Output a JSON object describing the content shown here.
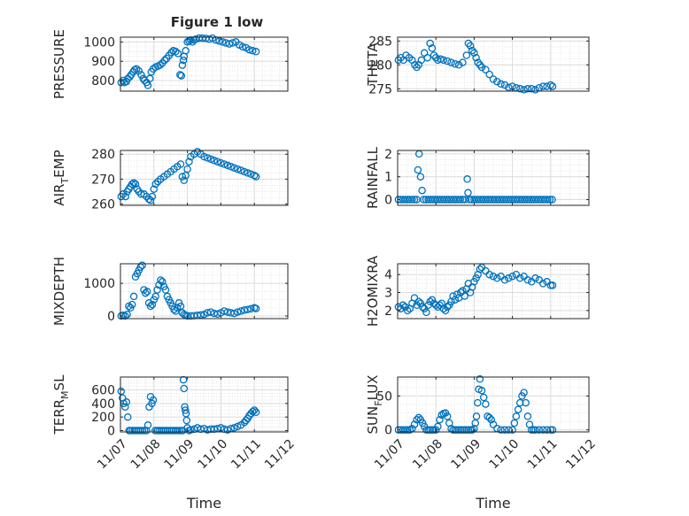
{
  "figure": {
    "title": "Figure 1 low"
  },
  "chart_data": [
    {
      "type": "scatter",
      "panel": "PRESSURE",
      "ylabel": "PRESSURE",
      "xlabel": "",
      "title": "Figure 1 low",
      "ylim": [
        745,
        1025
      ],
      "yticks": [
        800,
        900,
        1000
      ],
      "ytick_labels": [
        "800",
        "900",
        "1000"
      ],
      "xlim": [
        0,
        5
      ],
      "xticks": [
        0,
        1,
        2,
        3,
        4,
        5
      ],
      "xtick_labels": [],
      "grid": true,
      "marker": "o",
      "color": "#0072BD",
      "x": [
        0.02,
        0.08,
        0.12,
        0.18,
        0.22,
        0.28,
        0.32,
        0.38,
        0.42,
        0.48,
        0.55,
        0.62,
        0.68,
        0.72,
        0.78,
        0.82,
        0.88,
        0.92,
        0.98,
        1.05,
        1.12,
        1.18,
        1.25,
        1.32,
        1.38,
        1.45,
        1.52,
        1.58,
        1.65,
        1.72,
        1.78,
        1.82,
        1.85,
        1.88,
        1.9,
        1.95,
        2.0,
        2.05,
        2.1,
        2.15,
        2.2,
        2.25,
        2.35,
        2.45,
        2.55,
        2.65,
        2.75,
        2.85,
        2.95,
        3.05,
        3.15,
        3.25,
        3.35,
        3.45,
        3.55,
        3.65,
        3.75,
        3.85,
        3.95,
        4.05
      ],
      "y": [
        790,
        800,
        790,
        795,
        810,
        820,
        830,
        845,
        855,
        860,
        850,
        830,
        810,
        800,
        790,
        775,
        810,
        845,
        860,
        870,
        875,
        880,
        890,
        905,
        915,
        930,
        945,
        955,
        950,
        940,
        830,
        825,
        880,
        905,
        925,
        955,
        1000,
        1005,
        1010,
        1000,
        1010,
        1015,
        1020,
        1020,
        1018,
        1015,
        1020,
        1010,
        1005,
        1000,
        995,
        990,
        995,
        1000,
        985,
        975,
        970,
        960,
        955,
        950
      ]
    },
    {
      "type": "scatter",
      "panel": "THETA",
      "ylabel": "THETA",
      "xlabel": "",
      "ylim": [
        274.5,
        285.8
      ],
      "yticks": [
        275,
        280,
        285
      ],
      "ytick_labels": [
        "275",
        "280",
        "285"
      ],
      "xlim": [
        0,
        5
      ],
      "xticks": [
        0,
        1,
        2,
        3,
        4,
        5
      ],
      "xtick_labels": [],
      "grid": true,
      "marker": "o",
      "color": "#0072BD",
      "x": [
        0.02,
        0.08,
        0.15,
        0.22,
        0.3,
        0.38,
        0.45,
        0.5,
        0.55,
        0.62,
        0.7,
        0.78,
        0.85,
        0.9,
        0.95,
        1.0,
        1.05,
        1.12,
        1.2,
        1.3,
        1.4,
        1.5,
        1.6,
        1.7,
        1.8,
        1.85,
        1.9,
        1.95,
        2.0,
        2.05,
        2.1,
        2.15,
        2.2,
        2.3,
        2.4,
        2.5,
        2.6,
        2.7,
        2.8,
        2.9,
        3.0,
        3.1,
        3.2,
        3.3,
        3.4,
        3.5,
        3.6,
        3.7,
        3.8,
        3.9,
        4.0,
        4.05
      ],
      "y": [
        281,
        281.5,
        281,
        282,
        281.5,
        281,
        280,
        279.5,
        280,
        281,
        282.5,
        281.5,
        284.5,
        283.5,
        282,
        281.5,
        281,
        281.2,
        281,
        280.8,
        280.5,
        280.2,
        280,
        280.5,
        282,
        284.5,
        284,
        283,
        282.5,
        281.5,
        280.5,
        280,
        279.5,
        279,
        278,
        277,
        276.5,
        276,
        275.8,
        275.3,
        275.5,
        275.2,
        275,
        274.8,
        275,
        275,
        274.8,
        275.2,
        275.5,
        275.5,
        275.8,
        275.5
      ]
    },
    {
      "type": "scatter",
      "panel": "AIR_TEMP",
      "ylabel": "AIR_TEMP",
      "ylim": [
        259.5,
        281.5
      ],
      "yticks": [
        260,
        270,
        280
      ],
      "ytick_labels": [
        "260",
        "270",
        "280"
      ],
      "xlim": [
        0,
        5
      ],
      "xticks": [
        0,
        1,
        2,
        3,
        4,
        5
      ],
      "xtick_labels": [],
      "grid": true,
      "marker": "o",
      "color": "#0072BD",
      "x": [
        0.02,
        0.08,
        0.15,
        0.2,
        0.25,
        0.3,
        0.35,
        0.4,
        0.45,
        0.5,
        0.55,
        0.62,
        0.7,
        0.78,
        0.85,
        0.9,
        0.95,
        1.0,
        1.05,
        1.12,
        1.2,
        1.3,
        1.4,
        1.5,
        1.6,
        1.7,
        1.8,
        1.85,
        1.9,
        1.95,
        2.0,
        2.05,
        2.1,
        2.2,
        2.3,
        2.4,
        2.5,
        2.6,
        2.7,
        2.8,
        2.9,
        3.0,
        3.1,
        3.2,
        3.3,
        3.4,
        3.5,
        3.6,
        3.7,
        3.8,
        3.9,
        4.0,
        4.05
      ],
      "y": [
        263,
        264,
        263,
        265,
        266,
        267,
        268,
        268.5,
        268,
        266,
        265,
        264,
        264,
        263,
        262,
        261.5,
        263,
        266,
        268,
        269,
        270,
        271,
        272,
        273,
        274,
        275,
        276,
        271,
        269.5,
        271.5,
        274,
        277,
        279,
        280,
        281,
        280,
        279,
        278.5,
        278,
        277.5,
        277,
        276.5,
        276,
        275.5,
        275,
        274.5,
        274,
        273.5,
        273,
        272.5,
        272,
        271.5,
        271
      ]
    },
    {
      "type": "scatter",
      "panel": "RAINFALL",
      "ylabel": "RAINFALL",
      "ylim": [
        -0.25,
        2.15
      ],
      "yticks": [
        0,
        1,
        2
      ],
      "ytick_labels": [
        "0",
        "1",
        "2"
      ],
      "xlim": [
        0,
        5
      ],
      "xticks": [
        0,
        1,
        2,
        3,
        4,
        5
      ],
      "xtick_labels": [],
      "grid": true,
      "marker": "o",
      "color": "#0072BD",
      "x": [
        0.02,
        0.08,
        0.14,
        0.2,
        0.26,
        0.32,
        0.38,
        0.44,
        0.5,
        0.53,
        0.56,
        0.6,
        0.64,
        0.68,
        0.74,
        0.8,
        0.86,
        0.92,
        0.98,
        1.04,
        1.1,
        1.16,
        1.22,
        1.28,
        1.34,
        1.4,
        1.46,
        1.52,
        1.58,
        1.64,
        1.7,
        1.76,
        1.82,
        1.84,
        1.88,
        1.94,
        2.0,
        2.06,
        2.12,
        2.18,
        2.24,
        2.3,
        2.36,
        2.42,
        2.48,
        2.54,
        2.6,
        2.66,
        2.72,
        2.78,
        2.84,
        2.9,
        2.96,
        3.02,
        3.08,
        3.14,
        3.2,
        3.26,
        3.32,
        3.38,
        3.44,
        3.5,
        3.56,
        3.62,
        3.68,
        3.74,
        3.8,
        3.86,
        3.92,
        3.98,
        4.04
      ],
      "y": [
        0,
        0,
        0,
        0,
        0,
        0,
        0,
        0,
        0,
        1.3,
        2.0,
        1.0,
        0.4,
        0,
        0,
        0,
        0,
        0,
        0,
        0,
        0,
        0,
        0,
        0,
        0,
        0,
        0,
        0,
        0,
        0,
        0,
        0,
        0.9,
        0.3,
        0,
        0,
        0,
        0,
        0,
        0,
        0,
        0,
        0,
        0,
        0,
        0,
        0,
        0,
        0,
        0,
        0,
        0,
        0,
        0,
        0,
        0,
        0,
        0,
        0,
        0,
        0,
        0,
        0,
        0,
        0,
        0,
        0,
        0,
        0,
        0,
        0
      ]
    },
    {
      "type": "scatter",
      "panel": "MIXDEPTH",
      "ylabel": "MIXDEPTH",
      "ylim": [
        -80,
        1600
      ],
      "yticks": [
        0,
        1000
      ],
      "ytick_labels": [
        "0",
        "1000"
      ],
      "xlim": [
        0,
        5
      ],
      "xticks": [
        0,
        1,
        2,
        3,
        4,
        5
      ],
      "xtick_labels": [],
      "grid": true,
      "marker": "o",
      "color": "#0072BD",
      "x": [
        0.02,
        0.08,
        0.14,
        0.2,
        0.25,
        0.3,
        0.35,
        0.4,
        0.45,
        0.5,
        0.55,
        0.6,
        0.65,
        0.7,
        0.75,
        0.8,
        0.85,
        0.9,
        0.95,
        1.0,
        1.05,
        1.1,
        1.15,
        1.2,
        1.25,
        1.3,
        1.35,
        1.4,
        1.45,
        1.5,
        1.55,
        1.6,
        1.65,
        1.7,
        1.75,
        1.8,
        1.85,
        1.9,
        1.95,
        2.0,
        2.1,
        2.2,
        2.3,
        2.4,
        2.5,
        2.6,
        2.7,
        2.8,
        2.9,
        3.0,
        3.1,
        3.2,
        3.3,
        3.4,
        3.5,
        3.6,
        3.7,
        3.8,
        3.9,
        4.0,
        4.05
      ],
      "y": [
        0,
        20,
        0,
        50,
        300,
        250,
        350,
        600,
        1200,
        1300,
        1400,
        1500,
        1550,
        800,
        700,
        750,
        400,
        300,
        350,
        500,
        600,
        800,
        950,
        1100,
        1050,
        900,
        800,
        600,
        500,
        400,
        300,
        200,
        150,
        250,
        400,
        300,
        100,
        50,
        20,
        0,
        0,
        10,
        20,
        30,
        50,
        100,
        120,
        80,
        60,
        100,
        150,
        120,
        100,
        80,
        120,
        150,
        180,
        200,
        220,
        250,
        230
      ]
    },
    {
      "type": "scatter",
      "panel": "H2OMIXRA",
      "ylabel": "H2OMIXRA",
      "ylim": [
        1.55,
        4.6
      ],
      "yticks": [
        2,
        3,
        4
      ],
      "ytick_labels": [
        "2",
        "3",
        "4"
      ],
      "xlim": [
        0,
        5
      ],
      "xticks": [
        0,
        1,
        2,
        3,
        4,
        5
      ],
      "xtick_labels": [],
      "grid": true,
      "marker": "o",
      "color": "#0072BD",
      "x": [
        0.02,
        0.08,
        0.14,
        0.2,
        0.26,
        0.32,
        0.38,
        0.44,
        0.5,
        0.55,
        0.6,
        0.65,
        0.7,
        0.75,
        0.8,
        0.85,
        0.9,
        0.95,
        1.0,
        1.05,
        1.1,
        1.15,
        1.2,
        1.25,
        1.3,
        1.35,
        1.4,
        1.45,
        1.5,
        1.55,
        1.6,
        1.65,
        1.7,
        1.75,
        1.8,
        1.85,
        1.9,
        1.95,
        2.0,
        2.05,
        2.1,
        2.15,
        2.2,
        2.3,
        2.4,
        2.5,
        2.6,
        2.7,
        2.8,
        2.9,
        3.0,
        3.1,
        3.2,
        3.3,
        3.4,
        3.5,
        3.6,
        3.7,
        3.8,
        3.9,
        4.0,
        4.05
      ],
      "y": [
        2.2,
        2.1,
        2.3,
        2.2,
        2.0,
        2.1,
        2.4,
        2.7,
        2.3,
        2.5,
        2.4,
        2.2,
        2.1,
        1.9,
        2.3,
        2.5,
        2.6,
        2.4,
        2.3,
        2.2,
        2.3,
        2.4,
        2.1,
        2.0,
        2.2,
        2.3,
        2.5,
        2.8,
        2.6,
        2.9,
        2.7,
        3.0,
        3.1,
        2.8,
        3.2,
        3.5,
        3.0,
        3.3,
        3.6,
        3.8,
        4.0,
        4.3,
        4.4,
        4.2,
        4.0,
        3.9,
        3.8,
        3.9,
        3.7,
        3.8,
        3.9,
        4.0,
        3.8,
        3.9,
        3.7,
        3.6,
        3.8,
        3.7,
        3.5,
        3.6,
        3.4,
        3.4
      ]
    },
    {
      "type": "scatter",
      "panel": "TERR_MSL",
      "ylabel": "TERR_MSL",
      "ylim": [
        -20,
        790
      ],
      "yticks": [
        0,
        200,
        400,
        600
      ],
      "ytick_labels": [
        "0",
        "200",
        "400",
        "600"
      ],
      "xlim": [
        0,
        5
      ],
      "xticks": [
        0,
        1,
        2,
        3,
        4,
        5
      ],
      "xtick_labels": [
        "11/07",
        "11/08",
        "11/09",
        "11/10",
        "11/11",
        "11/12"
      ],
      "xlabel": "Time",
      "grid": true,
      "marker": "o",
      "color": "#0072BD",
      "x": [
        0.02,
        0.06,
        0.1,
        0.14,
        0.18,
        0.22,
        0.26,
        0.3,
        0.36,
        0.42,
        0.48,
        0.54,
        0.6,
        0.66,
        0.72,
        0.78,
        0.82,
        0.86,
        0.9,
        0.94,
        0.98,
        1.04,
        1.1,
        1.16,
        1.22,
        1.28,
        1.34,
        1.4,
        1.46,
        1.52,
        1.58,
        1.64,
        1.7,
        1.76,
        1.82,
        1.86,
        1.88,
        1.9,
        1.92,
        1.94,
        1.96,
        1.98,
        2.0,
        2.05,
        2.1,
        2.2,
        2.3,
        2.4,
        2.5,
        2.6,
        2.7,
        2.8,
        2.9,
        3.0,
        3.1,
        3.2,
        3.3,
        3.4,
        3.5,
        3.6,
        3.7,
        3.75,
        3.8,
        3.85,
        3.9,
        3.95,
        4.0,
        4.05
      ],
      "y": [
        580,
        480,
        400,
        350,
        420,
        200,
        0,
        0,
        0,
        0,
        0,
        0,
        0,
        0,
        0,
        0,
        80,
        350,
        500,
        400,
        450,
        0,
        0,
        0,
        0,
        0,
        0,
        0,
        0,
        0,
        0,
        0,
        0,
        0,
        0,
        0,
        750,
        620,
        350,
        300,
        250,
        150,
        40,
        0,
        10,
        20,
        40,
        20,
        30,
        10,
        20,
        20,
        30,
        40,
        20,
        10,
        30,
        40,
        60,
        80,
        120,
        150,
        180,
        220,
        250,
        280,
        300,
        270
      ]
    },
    {
      "type": "scatter",
      "panel": "SUN_FLUX",
      "ylabel": "SUN_FLUX",
      "ylim": [
        -3,
        78
      ],
      "yticks": [
        0,
        50
      ],
      "ytick_labels": [
        "0",
        "50"
      ],
      "xlim": [
        0,
        5
      ],
      "xticks": [
        0,
        1,
        2,
        3,
        4,
        5
      ],
      "xtick_labels": [
        "11/07",
        "11/08",
        "11/09",
        "11/10",
        "11/11",
        "11/12"
      ],
      "xlabel": "Time",
      "grid": true,
      "marker": "o",
      "color": "#0072BD",
      "x": [
        0.02,
        0.08,
        0.14,
        0.2,
        0.26,
        0.32,
        0.38,
        0.44,
        0.5,
        0.55,
        0.6,
        0.65,
        0.7,
        0.75,
        0.8,
        0.85,
        0.9,
        0.95,
        1.0,
        1.05,
        1.1,
        1.15,
        1.2,
        1.25,
        1.3,
        1.35,
        1.4,
        1.45,
        1.5,
        1.55,
        1.6,
        1.65,
        1.7,
        1.75,
        1.8,
        1.85,
        1.9,
        1.95,
        2.0,
        2.03,
        2.06,
        2.09,
        2.12,
        2.15,
        2.2,
        2.25,
        2.3,
        2.35,
        2.4,
        2.45,
        2.5,
        2.6,
        2.7,
        2.8,
        2.9,
        3.0,
        3.05,
        3.1,
        3.15,
        3.2,
        3.25,
        3.3,
        3.35,
        3.4,
        3.45,
        3.5,
        3.55,
        3.6,
        3.7,
        3.8,
        3.9,
        4.0,
        4.05
      ],
      "y": [
        0,
        0,
        0,
        0,
        0,
        0,
        2,
        8,
        15,
        18,
        15,
        10,
        5,
        0,
        0,
        0,
        0,
        0,
        0,
        5,
        15,
        22,
        24,
        25,
        20,
        10,
        2,
        0,
        0,
        0,
        0,
        0,
        0,
        0,
        0,
        0,
        0,
        0,
        2,
        10,
        20,
        40,
        60,
        75,
        58,
        48,
        38,
        20,
        18,
        15,
        8,
        2,
        0,
        0,
        0,
        0,
        10,
        20,
        30,
        40,
        50,
        55,
        40,
        20,
        8,
        0,
        0,
        0,
        0,
        0,
        0,
        0,
        0
      ]
    }
  ]
}
